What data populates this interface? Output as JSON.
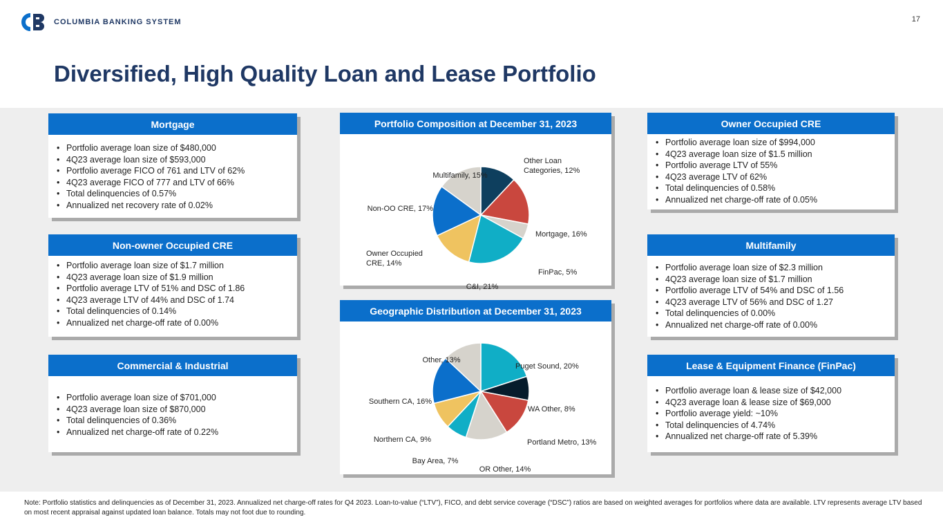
{
  "header": {
    "brand": "COLUMBIA BANKING SYSTEM",
    "page_number": "17",
    "title": "Diversified, High Quality Loan and Lease Portfolio"
  },
  "cards": {
    "mortgage": {
      "heading": "Mortgage",
      "bullets": [
        "Portfolio average loan size of $480,000",
        "4Q23 average loan size of $593,000",
        "Portfolio average FICO of 761 and LTV of 62%",
        "4Q23 average FICO of 777 and LTV of 66%",
        "Total delinquencies of 0.57%",
        "Annualized net recovery rate of 0.02%"
      ]
    },
    "non_oo_cre": {
      "heading": "Non-owner Occupied CRE",
      "bullets": [
        "Portfolio average loan size of $1.7 million",
        "4Q23 average loan size of $1.9 million",
        "Portfolio average LTV of 51% and DSC of 1.86",
        "4Q23 average LTV of 44% and DSC of 1.74",
        "Total delinquencies of 0.14%",
        "Annualized net charge-off rate of 0.00%"
      ]
    },
    "ci": {
      "heading": "Commercial & Industrial",
      "bullets": [
        "Portfolio average loan size of $701,000",
        "4Q23 average loan size of $870,000",
        "Total delinquencies of 0.36%",
        "Annualized net charge-off rate of 0.22%"
      ]
    },
    "oo_cre": {
      "heading": "Owner Occupied CRE",
      "bullets": [
        "Portfolio average loan size of $994,000",
        "4Q23 average loan size of $1.5 million",
        "Portfolio average LTV of 55%",
        "4Q23 average LTV of 62%",
        "Total delinquencies of 0.58%",
        "Annualized net charge-off rate of 0.05%"
      ]
    },
    "multifamily": {
      "heading": "Multifamily",
      "bullets": [
        "Portfolio average loan size of $2.3 million",
        "4Q23 average loan size of $1.7 million",
        "Portfolio average LTV of 54% and DSC of 1.56",
        "4Q23 average LTV of 56% and DSC of 1.27",
        "Total delinquencies of 0.00%",
        "Annualized net charge-off rate of 0.00%"
      ]
    },
    "finpac": {
      "heading": "Lease & Equipment Finance (FinPac)",
      "bullets": [
        "Portfolio average loan & lease size of $42,000",
        "4Q23 average loan & lease size of $69,000",
        "Portfolio average yield: ~10%",
        "Total delinquencies of 4.74%",
        "Annualized net charge-off rate of 5.39%"
      ]
    }
  },
  "chart_data": [
    {
      "type": "pie",
      "title": "Portfolio Composition at December 31, 2023",
      "slices": [
        {
          "label": "Other Loan Categories",
          "value": 12,
          "display": [
            "Other Loan",
            "Categories, 12%"
          ],
          "color": "#0e3f5e"
        },
        {
          "label": "Mortgage",
          "value": 16,
          "display": [
            "Mortgage, 16%"
          ],
          "color": "#c9473e"
        },
        {
          "label": "FinPac",
          "value": 5,
          "display": [
            "FinPac, 5%"
          ],
          "color": "#d6d3cc"
        },
        {
          "label": "C&I",
          "value": 21,
          "display": [
            "C&I, 21%"
          ],
          "color": "#10aec6"
        },
        {
          "label": "Owner Occupied CRE",
          "value": 14,
          "display": [
            "Owner Occupied",
            "CRE, 14%"
          ],
          "color": "#efc360"
        },
        {
          "label": "Non-OO CRE",
          "value": 17,
          "display": [
            "Non-OO CRE, 17%"
          ],
          "color": "#0b6fcb"
        },
        {
          "label": "Multifamily",
          "value": 15,
          "display": [
            "Multifamily, 15%"
          ],
          "color": "#d6d3cc"
        }
      ]
    },
    {
      "type": "pie",
      "title": "Geographic Distribution at December 31, 2023",
      "slices": [
        {
          "label": "Puget Sound",
          "value": 20,
          "display": [
            "Puget Sound, 20%"
          ],
          "color": "#10aec6"
        },
        {
          "label": "WA Other",
          "value": 8,
          "display": [
            "WA Other, 8%"
          ],
          "color": "#061c2c"
        },
        {
          "label": "Portland Metro",
          "value": 13,
          "display": [
            "Portland Metro, 13%"
          ],
          "color": "#c9473e"
        },
        {
          "label": "OR Other",
          "value": 14,
          "display": [
            "OR Other, 14%"
          ],
          "color": "#d6d3cc"
        },
        {
          "label": "Bay Area",
          "value": 7,
          "display": [
            "Bay Area, 7%"
          ],
          "color": "#10aec6"
        },
        {
          "label": "Northern CA",
          "value": 9,
          "display": [
            "Northern CA, 9%"
          ],
          "color": "#efc360"
        },
        {
          "label": "Southern CA",
          "value": 16,
          "display": [
            "Southern CA, 16%"
          ],
          "color": "#0b6fcb"
        },
        {
          "label": "Other",
          "value": 13,
          "display": [
            "Other, 13%"
          ],
          "color": "#d6d3cc"
        }
      ]
    }
  ],
  "footnote": "Note: Portfolio statistics and delinquencies as of December 31, 2023. Annualized net charge-off rates for Q4 2023. Loan-to-value (“LTV”), FICO, and debt service coverage (“DSC”) ratios are based on weighted averages for portfolios where data are available. LTV represents average LTV based on most recent appraisal against updated loan balance.  Totals may not foot due to rounding."
}
